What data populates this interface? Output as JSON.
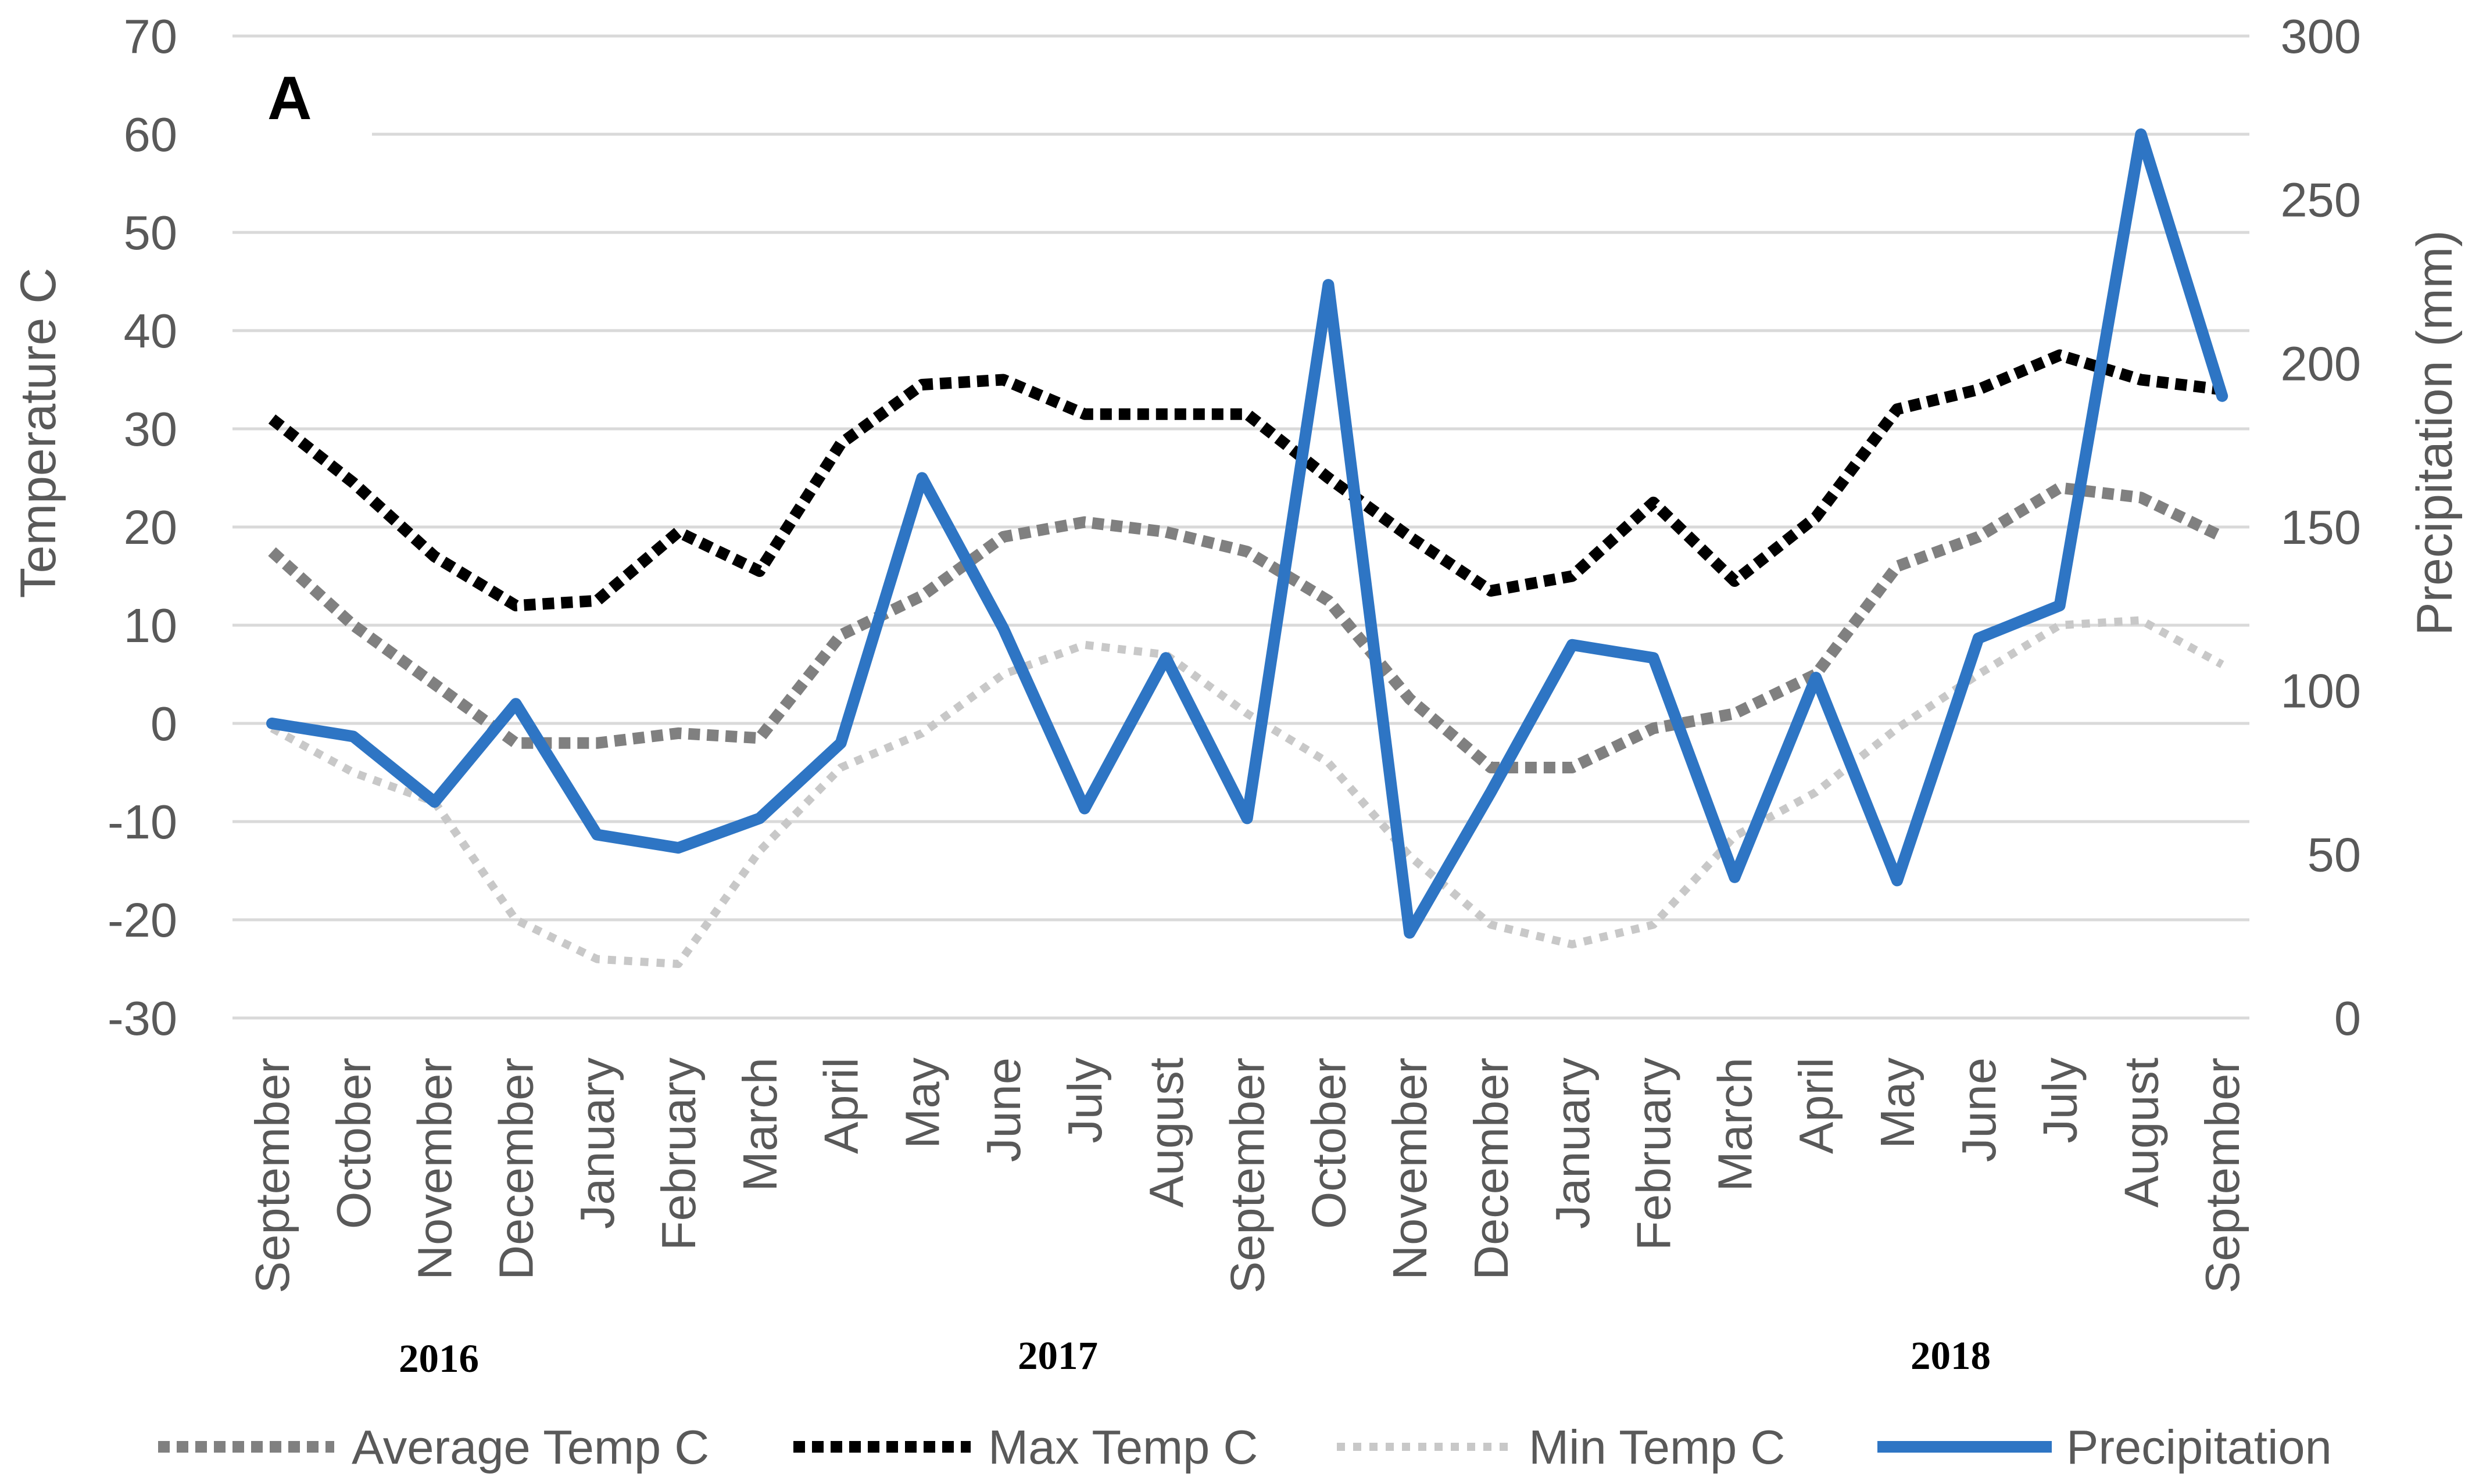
{
  "chart_data": {
    "type": "line",
    "panel_label": "A",
    "categories": [
      "September",
      "October",
      "November",
      "December",
      "January",
      "February",
      "March",
      "April",
      "May",
      "June",
      "July",
      "August",
      "September",
      "October",
      "November",
      "December",
      "January",
      "February",
      "March",
      "April",
      "May",
      "June",
      "July",
      "August",
      "September"
    ],
    "year_labels": [
      "2016",
      "2017",
      "2018"
    ],
    "y_left": {
      "label": "Temperature C",
      "lim": [
        -30,
        70
      ],
      "ticks": [
        "70",
        "60",
        "50",
        "40",
        "30",
        "20",
        "10",
        "0",
        "-10",
        "-20",
        "-30"
      ]
    },
    "y_right": {
      "label": "Precipitation (mm)",
      "lim": [
        0,
        300
      ],
      "ticks": [
        "300",
        "250",
        "200",
        "150",
        "100",
        "50",
        "0"
      ]
    },
    "grid": true,
    "legend_position": "bottom",
    "series": [
      {
        "name": "Average Temp C",
        "axis": "left",
        "style": "dotted-thick",
        "color": "#808080",
        "values": [
          17.5,
          10,
          4,
          -2,
          -2,
          -1,
          -1.5,
          9,
          13,
          19,
          20.5,
          19.5,
          17.5,
          12.5,
          2.5,
          -4.5,
          -4.5,
          -0.5,
          1,
          5,
          16,
          19,
          24,
          23,
          19
        ]
      },
      {
        "name": "Max Temp C",
        "axis": "left",
        "style": "dotted-thick",
        "color": "#000000",
        "values": [
          31,
          24.5,
          17,
          12,
          12.5,
          19.5,
          15.5,
          28.5,
          34.5,
          35,
          31.5,
          31.5,
          31.5,
          25,
          19,
          13.5,
          15,
          22.5,
          14.5,
          21,
          32,
          34,
          37.5,
          35,
          34
        ]
      },
      {
        "name": "Min Temp C",
        "axis": "left",
        "style": "dotted-thin",
        "color": "#c8c8c8",
        "values": [
          -0.5,
          -5,
          -8,
          -20,
          -24,
          -24.5,
          -13,
          -4.5,
          -1,
          5,
          8,
          7,
          1,
          -4,
          -13.5,
          -20.5,
          -22.5,
          -20.5,
          -11.5,
          -7,
          -0.5,
          5,
          10,
          10.5,
          6
        ]
      },
      {
        "name": "Precipitation",
        "axis": "right",
        "style": "solid",
        "color": "#2e75c4",
        "values": [
          90,
          86,
          66,
          96,
          56,
          52,
          61,
          84,
          165,
          119,
          64,
          110,
          61,
          224,
          26,
          69,
          114,
          110,
          43,
          104,
          42,
          116,
          126,
          270,
          190
        ]
      }
    ]
  }
}
